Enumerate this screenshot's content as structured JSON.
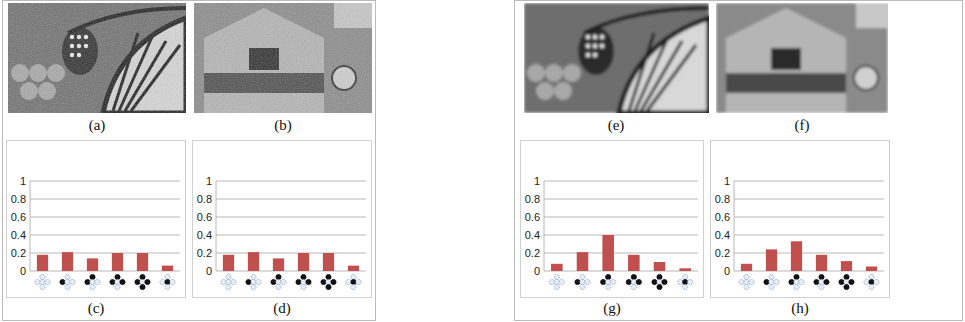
{
  "images": [
    {
      "label": "(a)"
    },
    {
      "label": "(b)"
    },
    {
      "label": "(e)"
    },
    {
      "label": "(f)"
    }
  ],
  "chart_data": [
    {
      "type": "bar",
      "title": "(c)",
      "categories": [
        null,
        null,
        null,
        null,
        null,
        null
      ],
      "values": [
        0.18,
        0.21,
        0.14,
        0.2,
        0.2,
        0.06
      ],
      "color": "#c0504d",
      "ylim": [
        0,
        1
      ],
      "yticks": [
        0,
        0.2,
        0.4,
        0.6,
        0.8,
        1
      ],
      "grid": true
    },
    {
      "type": "bar",
      "title": "(d)",
      "categories": [
        null,
        null,
        null,
        null,
        null,
        null
      ],
      "values": [
        0.18,
        0.21,
        0.14,
        0.2,
        0.2,
        0.06
      ],
      "color": "#c0504d",
      "ylim": [
        0,
        1
      ],
      "yticks": [
        0,
        0.2,
        0.4,
        0.6,
        0.8,
        1
      ],
      "grid": true
    },
    {
      "type": "bar",
      "title": "(g)",
      "categories": [
        null,
        null,
        null,
        null,
        null,
        null
      ],
      "values": [
        0.08,
        0.21,
        0.4,
        0.18,
        0.1,
        0.03
      ],
      "color": "#c0504d",
      "ylim": [
        0,
        1
      ],
      "yticks": [
        0,
        0.2,
        0.4,
        0.6,
        0.8,
        1
      ],
      "grid": true
    },
    {
      "type": "bar",
      "title": "(h)",
      "categories": [
        null,
        null,
        null,
        null,
        null,
        null
      ],
      "values": [
        0.08,
        0.24,
        0.33,
        0.18,
        0.11,
        0.05
      ],
      "color": "#c0504d",
      "ylim": [
        0,
        1
      ],
      "yticks": [
        0,
        0.2,
        0.4,
        0.6,
        0.8,
        1
      ],
      "grid": true
    }
  ]
}
